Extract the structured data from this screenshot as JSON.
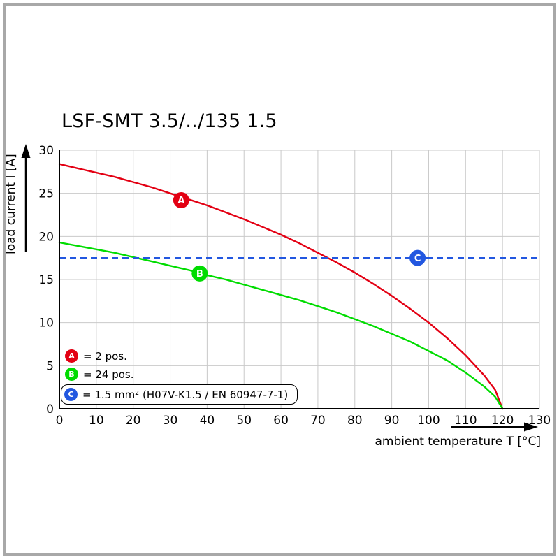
{
  "frame": {
    "border_color": "#a8a8a8",
    "background": "#ffffff"
  },
  "chart_data": {
    "type": "line",
    "title": "LSF-SMT 3.5/../135 1.5",
    "xlabel": "ambient temperature T [°C]",
    "ylabel": "load current I [A]",
    "xlim": [
      0,
      130
    ],
    "ylim": [
      0,
      30
    ],
    "x_ticks": [
      0,
      10,
      20,
      30,
      40,
      50,
      60,
      70,
      80,
      90,
      100,
      110,
      120,
      130
    ],
    "y_ticks": [
      0,
      5,
      10,
      15,
      20,
      25,
      30
    ],
    "grid": true,
    "grid_color": "#c9c9c9",
    "axis_color": "#000000",
    "legend_position": "bottom-left",
    "series": [
      {
        "name": "A",
        "label": "= 2 pos.",
        "color": "#e30013",
        "style": "curve",
        "points": [
          [
            0,
            28.4
          ],
          [
            5,
            27.9
          ],
          [
            10,
            27.4
          ],
          [
            15,
            26.9
          ],
          [
            20,
            26.3
          ],
          [
            25,
            25.7
          ],
          [
            30,
            25.0
          ],
          [
            35,
            24.3
          ],
          [
            40,
            23.6
          ],
          [
            45,
            22.8
          ],
          [
            50,
            22.0
          ],
          [
            55,
            21.1
          ],
          [
            60,
            20.2
          ],
          [
            65,
            19.2
          ],
          [
            70,
            18.1
          ],
          [
            75,
            17.0
          ],
          [
            80,
            15.8
          ],
          [
            85,
            14.5
          ],
          [
            90,
            13.1
          ],
          [
            95,
            11.6
          ],
          [
            100,
            10.0
          ],
          [
            105,
            8.2
          ],
          [
            110,
            6.2
          ],
          [
            115,
            3.9
          ],
          [
            118,
            2.2
          ],
          [
            120,
            0
          ]
        ],
        "marker": {
          "x": 33,
          "y": 24.2
        },
        "boxed": false
      },
      {
        "name": "B",
        "label": "= 24 pos.",
        "color": "#00dc00",
        "style": "curve",
        "points": [
          [
            0,
            19.3
          ],
          [
            5,
            18.9
          ],
          [
            10,
            18.5
          ],
          [
            15,
            18.1
          ],
          [
            20,
            17.6
          ],
          [
            25,
            17.1
          ],
          [
            30,
            16.6
          ],
          [
            35,
            16.1
          ],
          [
            40,
            15.5
          ],
          [
            45,
            15.0
          ],
          [
            50,
            14.4
          ],
          [
            55,
            13.8
          ],
          [
            60,
            13.2
          ],
          [
            65,
            12.6
          ],
          [
            70,
            11.9
          ],
          [
            75,
            11.2
          ],
          [
            80,
            10.4
          ],
          [
            85,
            9.6
          ],
          [
            90,
            8.7
          ],
          [
            95,
            7.8
          ],
          [
            100,
            6.7
          ],
          [
            105,
            5.6
          ],
          [
            110,
            4.2
          ],
          [
            115,
            2.6
          ],
          [
            118,
            1.4
          ],
          [
            120,
            0
          ]
        ],
        "marker": {
          "x": 38,
          "y": 15.7
        },
        "boxed": false
      },
      {
        "name": "C",
        "label": "= 1.5 mm² (H07V-K1.5 / EN 60947-7-1)",
        "color": "#2257e0",
        "style": "dashed-horizontal",
        "value": 17.5,
        "marker": {
          "x": 97,
          "y": 17.5
        },
        "boxed": true
      }
    ]
  }
}
